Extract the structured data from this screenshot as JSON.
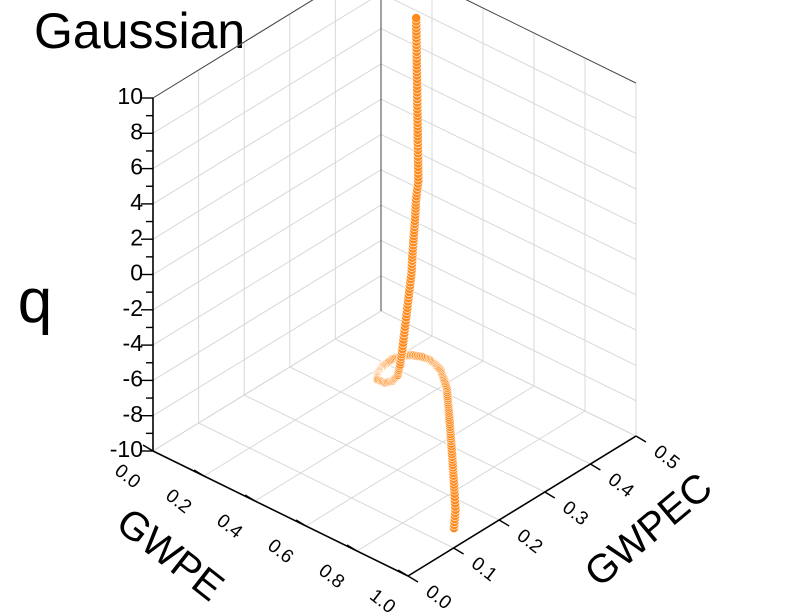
{
  "chart_data": {
    "type": "scatter",
    "title": "Gaussian",
    "xlabel": "GWPE",
    "ylabel": "GWPEC",
    "zlabel": "q",
    "xlim": [
      0.0,
      1.0
    ],
    "ylim": [
      0.0,
      0.5
    ],
    "zlim": [
      -10,
      10
    ],
    "x_ticks": [
      "0.0",
      "0.2",
      "0.4",
      "0.6",
      "0.8",
      "1.0"
    ],
    "y_ticks": [
      "0.0",
      "0.1",
      "0.2",
      "0.3",
      "0.4",
      "0.5"
    ],
    "z_ticks": [
      "-10",
      "-8",
      "-6",
      "-4",
      "-2",
      "0",
      "2",
      "4",
      "6",
      "8",
      "10"
    ],
    "grid": true,
    "series_color": "#ff8a1c",
    "series": [
      {
        "points": [
          [
            0.93,
            0.14,
            -10.0
          ],
          [
            0.9,
            0.16,
            -9.5
          ],
          [
            0.86,
            0.18,
            -9.0
          ],
          [
            0.82,
            0.2,
            -8.6
          ],
          [
            0.78,
            0.22,
            -8.3
          ],
          [
            0.74,
            0.24,
            -8.0
          ],
          [
            0.7,
            0.26,
            -7.8
          ],
          [
            0.66,
            0.28,
            -7.6
          ],
          [
            0.62,
            0.3,
            -7.5
          ],
          [
            0.58,
            0.32,
            -7.4
          ],
          [
            0.54,
            0.335,
            -7.35
          ],
          [
            0.5,
            0.35,
            -7.4
          ],
          [
            0.46,
            0.36,
            -7.5
          ],
          [
            0.42,
            0.37,
            -7.7
          ],
          [
            0.38,
            0.375,
            -7.9
          ],
          [
            0.34,
            0.375,
            -8.1
          ],
          [
            0.31,
            0.37,
            -8.3
          ],
          [
            0.29,
            0.36,
            -8.5
          ],
          [
            0.28,
            0.35,
            -8.7
          ],
          [
            0.28,
            0.34,
            -8.8
          ],
          [
            0.29,
            0.33,
            -8.85
          ],
          [
            0.31,
            0.32,
            -8.85
          ],
          [
            0.34,
            0.32,
            -8.8
          ],
          [
            0.36,
            0.325,
            -8.6
          ],
          [
            0.37,
            0.33,
            -8.3
          ],
          [
            0.37,
            0.335,
            -7.8
          ],
          [
            0.37,
            0.34,
            -7.0
          ],
          [
            0.37,
            0.345,
            -6.0
          ],
          [
            0.37,
            0.35,
            -5.0
          ],
          [
            0.37,
            0.355,
            -4.0
          ],
          [
            0.37,
            0.36,
            -3.0
          ],
          [
            0.37,
            0.362,
            -2.0
          ],
          [
            0.37,
            0.365,
            -1.0
          ],
          [
            0.37,
            0.368,
            0.0
          ],
          [
            0.37,
            0.37,
            1.0
          ],
          [
            0.37,
            0.375,
            2.0
          ],
          [
            0.36,
            0.38,
            3.0
          ],
          [
            0.35,
            0.385,
            4.0
          ],
          [
            0.34,
            0.39,
            5.0
          ],
          [
            0.33,
            0.395,
            6.0
          ],
          [
            0.32,
            0.4,
            7.0
          ],
          [
            0.31,
            0.405,
            8.0
          ],
          [
            0.3,
            0.41,
            9.0
          ],
          [
            0.29,
            0.415,
            10.0
          ]
        ]
      }
    ]
  }
}
